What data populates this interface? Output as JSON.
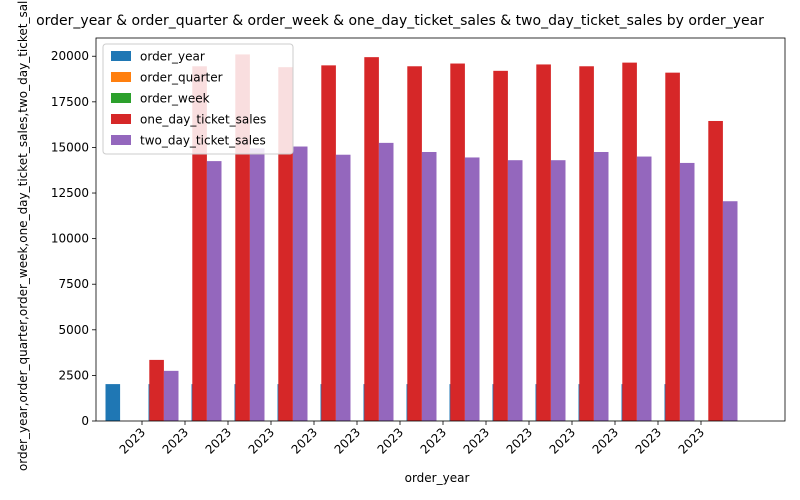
{
  "chart_data": {
    "type": "bar",
    "title": "order_year & order_quarter & order_week & one_day_ticket_sales & two_day_ticket_sales by order_year",
    "xlabel": "order_year",
    "ylabel": "order_year,order_quarter,order_week,one_day_ticket_sales,two_day_ticket_sales",
    "categories": [
      "2023",
      "2023",
      "2023",
      "2023",
      "2023",
      "2023",
      "2023",
      "2023",
      "2023",
      "2023",
      "2023",
      "2023",
      "2023",
      "2023"
    ],
    "ylim": [
      0,
      21000
    ],
    "yticks": [
      0,
      2500,
      5000,
      7500,
      10000,
      12500,
      15000,
      17500,
      20000
    ],
    "legend_position": "top-left",
    "grid": false,
    "series": [
      {
        "name": "order_year",
        "color": "#1f77b4",
        "values": [
          2023,
          2023,
          2023,
          2023,
          2023,
          2023,
          2023,
          2023,
          2023,
          2023,
          2023,
          2023,
          2023,
          2023
        ]
      },
      {
        "name": "order_quarter",
        "color": "#ff7f0e",
        "values": [
          1,
          1,
          1,
          1,
          2,
          2,
          2,
          2,
          2,
          2,
          2,
          2,
          2,
          3
        ]
      },
      {
        "name": "order_week",
        "color": "#2ca02c",
        "values": [
          1,
          2,
          3,
          4,
          5,
          6,
          7,
          8,
          9,
          10,
          11,
          12,
          13,
          14
        ]
      },
      {
        "name": "one_day_ticket_sales",
        "color": "#d62728",
        "values": [
          3350,
          19450,
          20100,
          19400,
          19500,
          19950,
          19450,
          19600,
          19200,
          19550,
          19450,
          19650,
          19100,
          16450
        ]
      },
      {
        "name": "two_day_ticket_sales",
        "color": "#9467bd",
        "values": [
          2750,
          14250,
          14950,
          15050,
          14600,
          15250,
          14750,
          14450,
          14300,
          14300,
          14750,
          14500,
          14150,
          12050
        ]
      }
    ]
  }
}
